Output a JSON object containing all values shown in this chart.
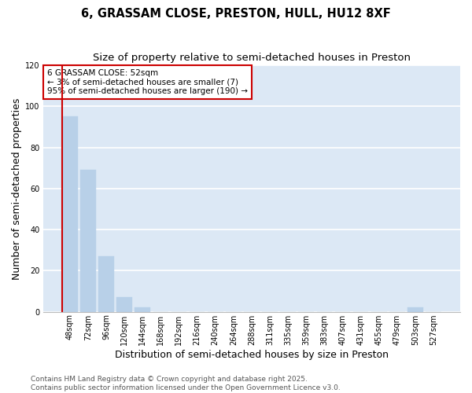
{
  "title": "6, GRASSAM CLOSE, PRESTON, HULL, HU12 8XF",
  "subtitle": "Size of property relative to semi-detached houses in Preston",
  "xlabel": "Distribution of semi-detached houses by size in Preston",
  "ylabel": "Number of semi-detached properties",
  "categories": [
    "48sqm",
    "72sqm",
    "96sqm",
    "120sqm",
    "144sqm",
    "168sqm",
    "192sqm",
    "216sqm",
    "240sqm",
    "264sqm",
    "288sqm",
    "311sqm",
    "335sqm",
    "359sqm",
    "383sqm",
    "407sqm",
    "431sqm",
    "455sqm",
    "479sqm",
    "503sqm",
    "527sqm"
  ],
  "values": [
    95,
    69,
    27,
    7,
    2,
    0,
    0,
    0,
    0,
    0,
    0,
    0,
    0,
    0,
    0,
    0,
    0,
    0,
    0,
    2,
    0
  ],
  "bar_color": "#b8d0e8",
  "ylim": [
    0,
    120
  ],
  "yticks": [
    0,
    20,
    40,
    60,
    80,
    100,
    120
  ],
  "property_label": "6 GRASSAM CLOSE: 52sqm",
  "annotation_line1": "← 3% of semi-detached houses are smaller (7)",
  "annotation_line2": "95% of semi-detached houses are larger (190) →",
  "red_color": "#cc0000",
  "plot_bg_color": "#dce8f5",
  "fig_bg_color": "#ffffff",
  "footer_line1": "Contains HM Land Registry data © Crown copyright and database right 2025.",
  "footer_line2": "Contains public sector information licensed under the Open Government Licence v3.0.",
  "title_fontsize": 10.5,
  "subtitle_fontsize": 9.5,
  "axis_label_fontsize": 9,
  "tick_fontsize": 7,
  "annotation_fontsize": 7.5,
  "footer_fontsize": 6.5
}
